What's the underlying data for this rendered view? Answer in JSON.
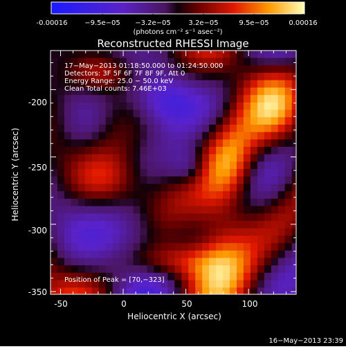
{
  "colorbar": {
    "tick_labels": [
      "-0.00016",
      "−9.5e−05",
      "−3.2e−05",
      "3.2e−05",
      "9.5e−05",
      "0.00016"
    ],
    "units_label": "(photons cm⁻² s⁻¹ asec⁻²)",
    "range": [
      -0.00016,
      0.00016
    ]
  },
  "chart_data": {
    "type": "heatmap",
    "title": "Reconstructed RHESSI Image",
    "xlabel": "Heliocentric X (arcsec)",
    "ylabel": "Heliocentric Y (arcsec)",
    "xlim": [
      -58,
      138
    ],
    "ylim": [
      -352,
      -171
    ],
    "xticks": [
      -50,
      0,
      50,
      100
    ],
    "yticks": [
      -200,
      -250,
      -300,
      -350
    ],
    "info_lines": [
      "17−May−2013 01:18:50.000 to 01:24:50.000",
      "Detectors: 3F 5F 6F 7F 8F 9F, Att 0",
      "Energy Range: 25.0 − 50.0 keV",
      "Clean    Total counts: 7.46E+03"
    ],
    "peak_label": "Position of Peak = [70,−323]",
    "peak_position": [
      70,
      -323
    ],
    "grid": false
  },
  "footer": {
    "timestamp": "16−May−2013 23:39"
  }
}
